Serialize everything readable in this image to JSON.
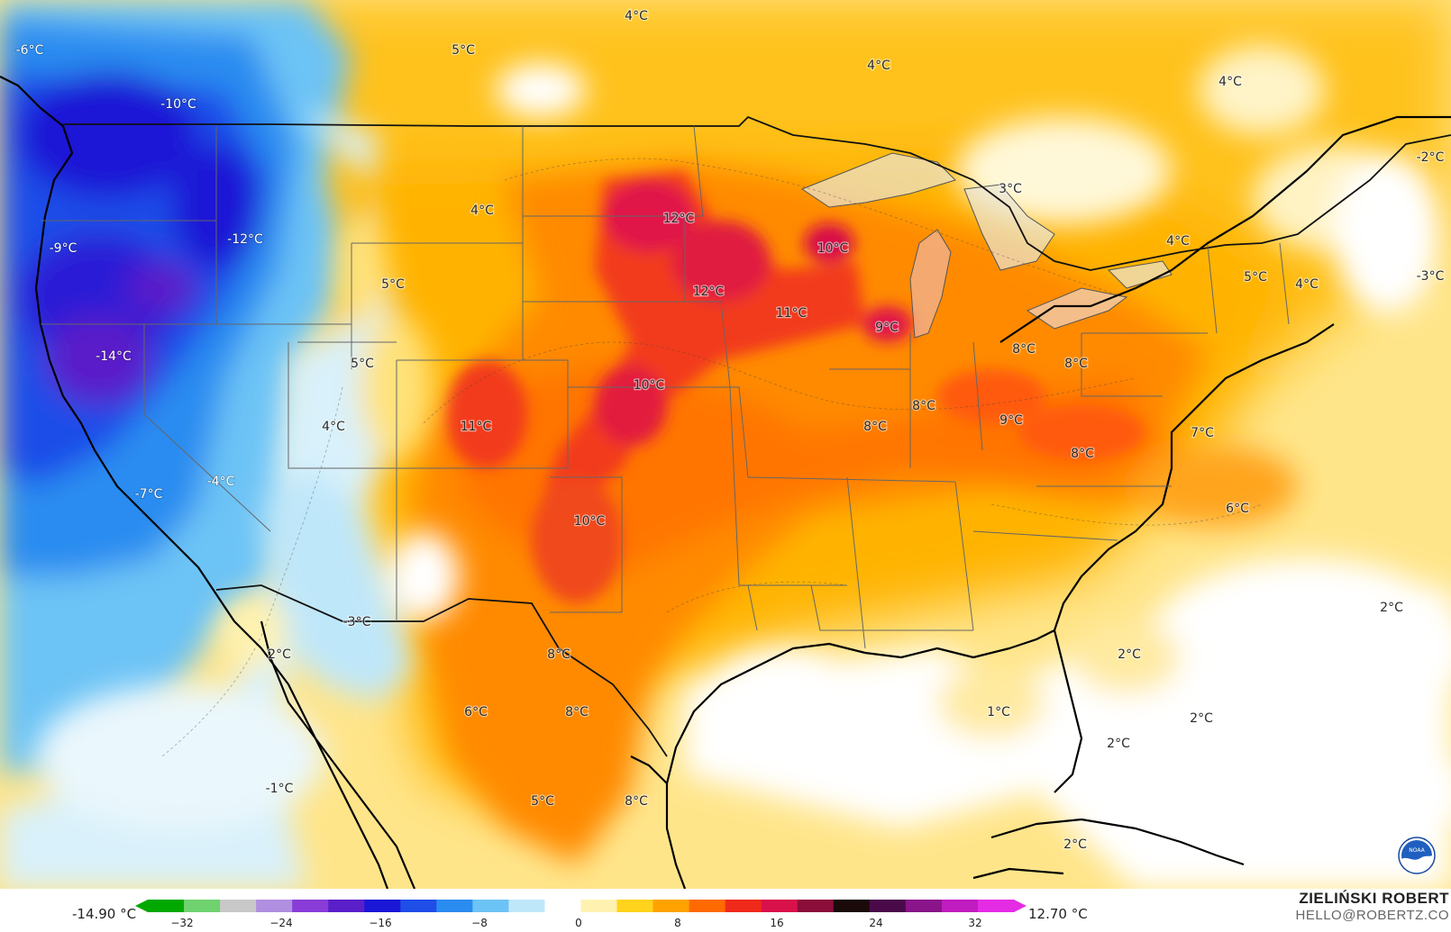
{
  "map": {
    "labels": [
      {
        "text": "-6°C"
      },
      {
        "text": "-10°C"
      },
      {
        "text": "5°C"
      },
      {
        "text": "4°C"
      },
      {
        "text": "4°C"
      },
      {
        "text": "4°C"
      },
      {
        "text": "-2°C"
      },
      {
        "text": "-12°C"
      },
      {
        "text": "-9°C"
      },
      {
        "text": "4°C"
      },
      {
        "text": "12°C"
      },
      {
        "text": "10°C"
      },
      {
        "text": "3°C"
      },
      {
        "text": "4°C"
      },
      {
        "text": "5°C"
      },
      {
        "text": "4°C"
      },
      {
        "text": "-3°C"
      },
      {
        "text": "5°C"
      },
      {
        "text": "12°C"
      },
      {
        "text": "11°C"
      },
      {
        "text": "9°C"
      },
      {
        "text": "-14°C"
      },
      {
        "text": "5°C"
      },
      {
        "text": "8°C"
      },
      {
        "text": "8°C"
      },
      {
        "text": "10°C"
      },
      {
        "text": "4°C"
      },
      {
        "text": "11°C"
      },
      {
        "text": "8°C"
      },
      {
        "text": "9°C"
      },
      {
        "text": "8°C"
      },
      {
        "text": "7°C"
      },
      {
        "text": "8°C"
      },
      {
        "text": "-4°C"
      },
      {
        "text": "-7°C"
      },
      {
        "text": "6°C"
      },
      {
        "text": "10°C"
      },
      {
        "text": "-3°C"
      },
      {
        "text": "2°C"
      },
      {
        "text": "2°C"
      },
      {
        "text": "8°C"
      },
      {
        "text": "2°C"
      },
      {
        "text": "6°C"
      },
      {
        "text": "8°C"
      },
      {
        "text": "1°C"
      },
      {
        "text": "2°C"
      },
      {
        "text": "2°C"
      },
      {
        "text": "-1°C"
      },
      {
        "text": "5°C"
      },
      {
        "text": "8°C"
      },
      {
        "text": "2°C"
      }
    ]
  },
  "legend": {
    "min_value": "-14.90 °C",
    "max_value": "12.70 °C",
    "ticks": [
      "−32",
      "−24",
      "−16",
      "−8",
      "0",
      "8",
      "16",
      "24",
      "32"
    ],
    "colors": [
      "#00a800",
      "#6fd26f",
      "#c8c8c8",
      "#b08ee0",
      "#8a3cd8",
      "#5a1fc9",
      "#1a16d6",
      "#1f4de8",
      "#2a8cf0",
      "#6cc3f5",
      "#bfe7fa",
      "#ffffff",
      "#fff2b0",
      "#ffd21c",
      "#ffa200",
      "#ff6a00",
      "#f02a1a",
      "#d8114a",
      "#8a0d3a",
      "#1a0a0a",
      "#4a0a4a",
      "#8a148a",
      "#c01cc0",
      "#e42ce4"
    ]
  },
  "author": {
    "name": "ZIELIŃSKI ROBERT",
    "email": "HELLO@ROBERTZ.CO"
  },
  "logo": {
    "icon": "noaa-logo-icon",
    "text": "NOAA"
  }
}
